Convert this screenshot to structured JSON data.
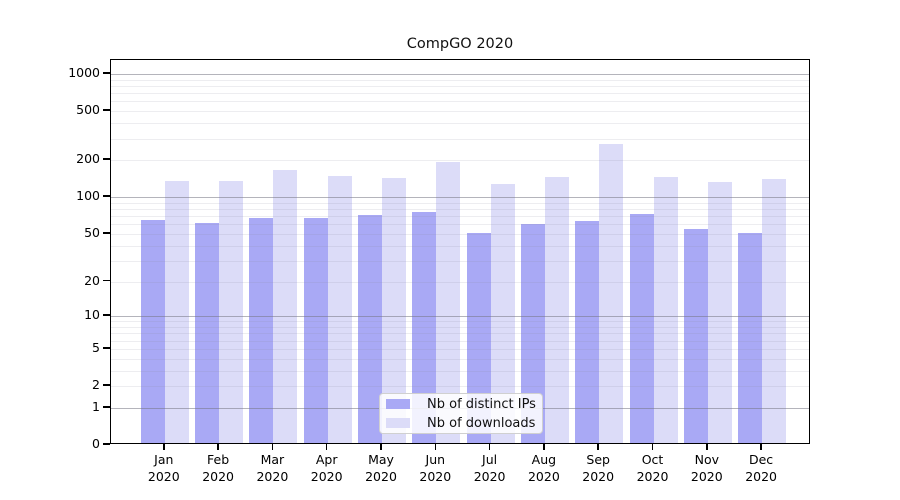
{
  "title": "CompGO 2020",
  "chart_data": {
    "type": "bar",
    "title": "CompGO 2020",
    "categories": [
      "Jan 2020",
      "Feb 2020",
      "Mar 2020",
      "Apr 2020",
      "May 2020",
      "Jun 2020",
      "Jul 2020",
      "Aug 2020",
      "Sep 2020",
      "Oct 2020",
      "Nov 2020",
      "Dec 2020"
    ],
    "series": [
      {
        "name": "Nb of distinct IPs",
        "color": "#a9a9f5",
        "values": [
          65,
          61,
          68,
          67,
          71,
          76,
          51,
          60,
          64,
          73,
          55,
          51
        ]
      },
      {
        "name": "Nb of downloads",
        "color": "#dcdcf8",
        "values": [
          135,
          135,
          168,
          148,
          143,
          194,
          128,
          145,
          272,
          147,
          133,
          142
        ]
      }
    ],
    "yscale": "log(1+v)",
    "yticks": [
      0,
      1,
      2,
      5,
      10,
      20,
      50,
      100,
      200,
      500,
      1000
    ],
    "major_grid_values": [
      1,
      10,
      100,
      1000
    ],
    "ylim": [
      0,
      1300
    ],
    "xlabel": "",
    "ylabel": "",
    "grid": "horizontal major and minor, on",
    "legend_position": "lower center"
  },
  "colors": {
    "bar_dark": "#a9a9f5",
    "bar_light": "#dcdcf8",
    "major_grid": "#b0b0b8",
    "minor_grid": "#e9e9ee",
    "axis": "#000000",
    "text": "#000000",
    "legend_border": "#d0d0d0",
    "background": "#ffffff"
  }
}
